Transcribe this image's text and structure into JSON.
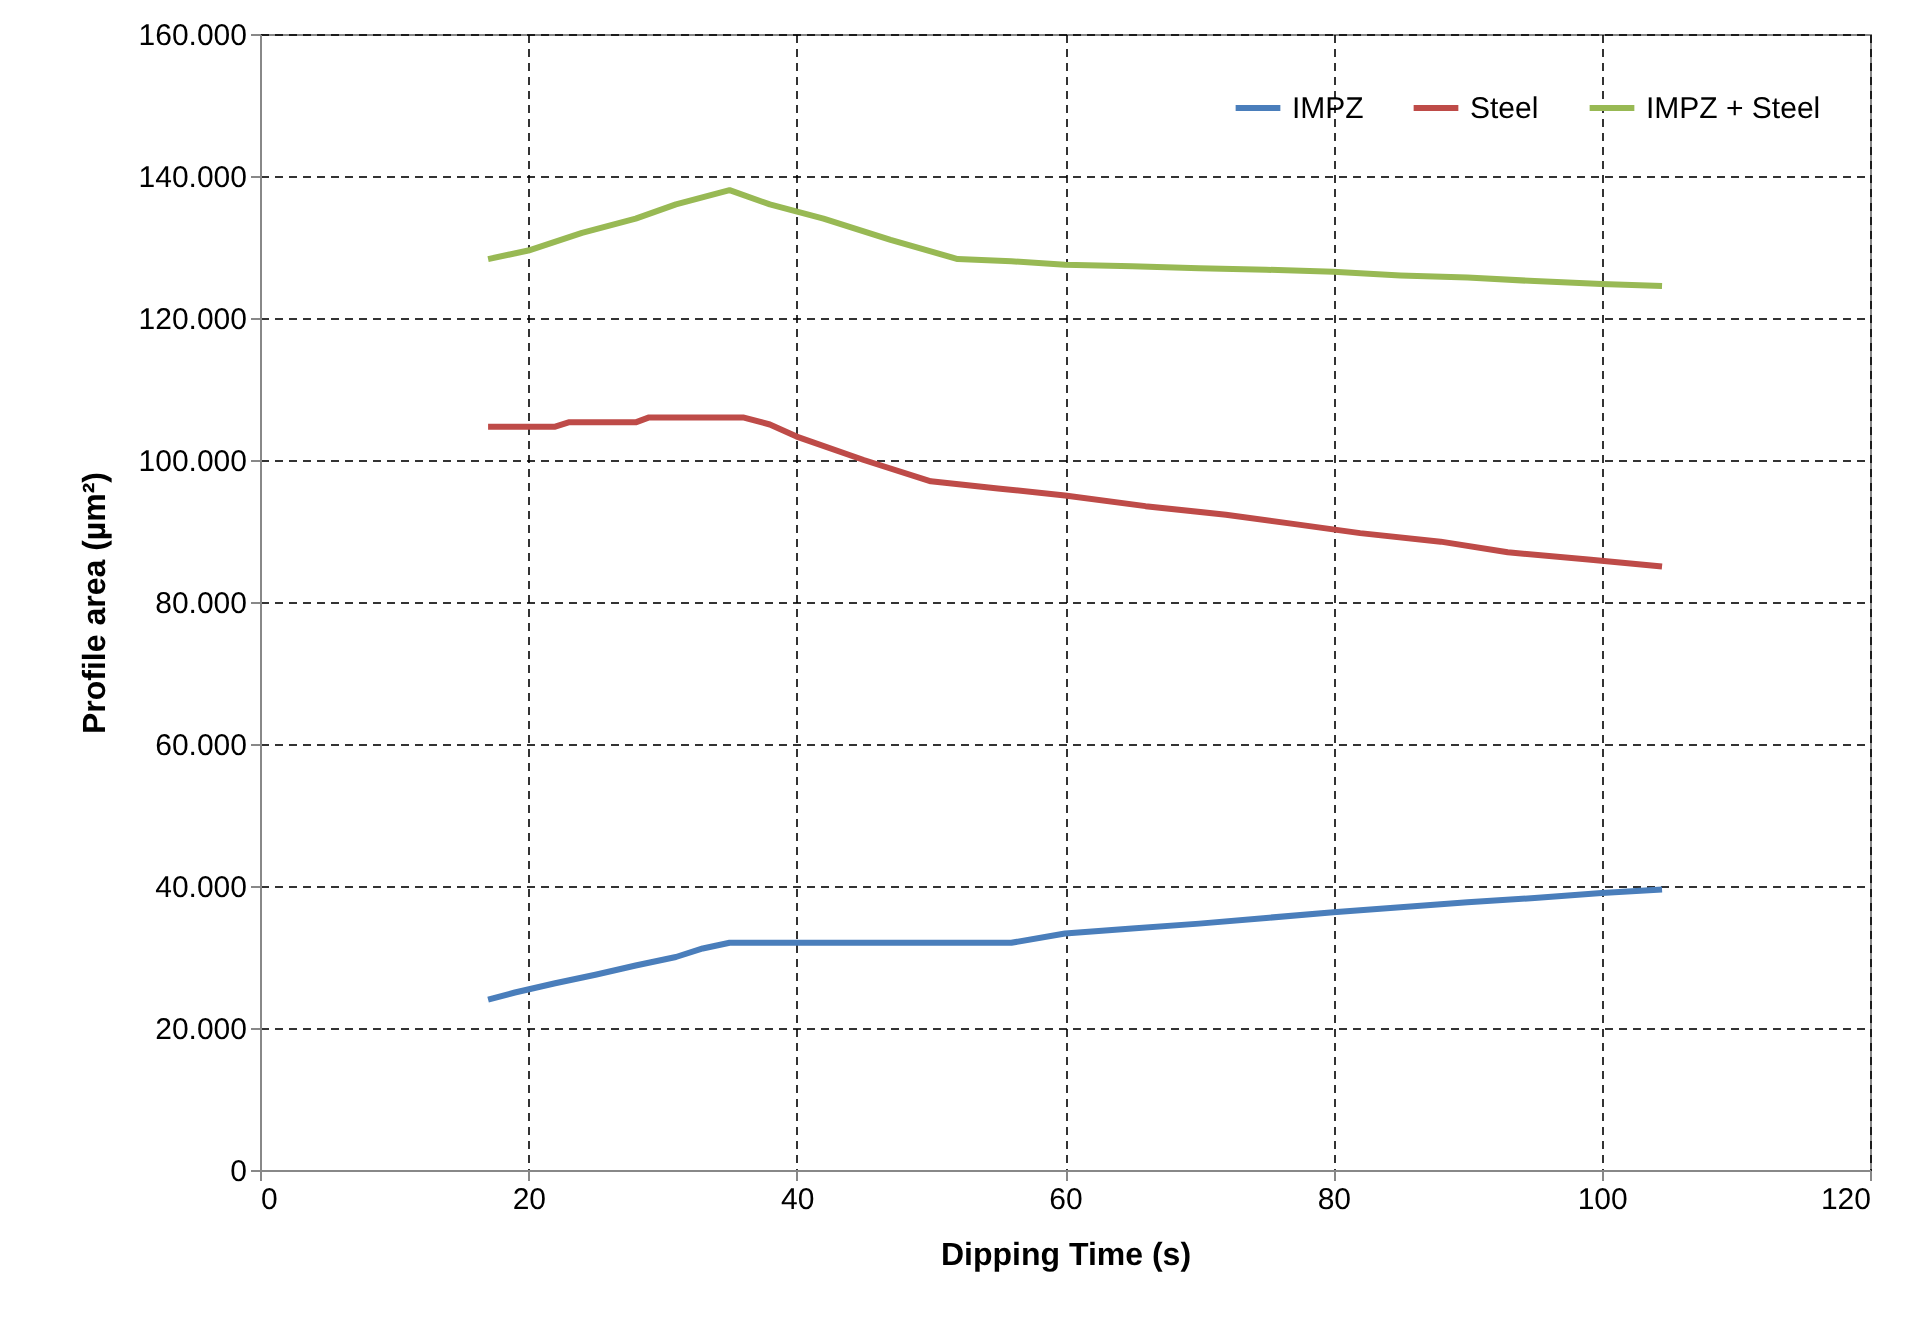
{
  "chart_data": {
    "type": "line",
    "xlabel": "Dipping Time (s)",
    "ylabel": "Profile area (µm²)",
    "xlim": [
      0,
      120
    ],
    "xticks": [
      0,
      20,
      40,
      60,
      80,
      100,
      120
    ],
    "ylim": [
      0,
      160000
    ],
    "yticks": [
      0,
      {
        "value": 20000,
        "label": "20.000"
      },
      {
        "value": 40000,
        "label": "40.000"
      },
      {
        "value": 60000,
        "label": "60.000"
      },
      {
        "value": 80000,
        "label": "80.000"
      },
      {
        "value": 100000,
        "label": "100.000"
      },
      {
        "value": 120000,
        "label": "120.000"
      },
      {
        "value": 140000,
        "label": "140.000"
      },
      {
        "value": 160000,
        "label": "160.000"
      }
    ],
    "grid": true,
    "legend": "top right",
    "line_style": "solid",
    "series": [
      {
        "name": "IMPZ",
        "color": "#4a7ebb",
        "x": [
          17,
          19,
          22,
          25,
          28,
          31,
          33,
          35,
          45,
          56,
          60,
          65,
          70,
          75,
          80,
          85,
          90,
          95,
          100,
          104.5
        ],
        "values": [
          24000,
          25000,
          26300,
          27500,
          28800,
          30000,
          31200,
          32000,
          32000,
          32000,
          33300,
          34000,
          34700,
          35500,
          36300,
          37000,
          37700,
          38300,
          39000,
          39500
        ]
      },
      {
        "name": "Steel",
        "color": "#be4b48",
        "x": [
          17,
          22,
          23,
          28,
          29,
          36,
          38,
          40,
          45,
          50,
          55,
          60,
          66,
          72,
          77,
          82,
          88,
          93,
          99,
          104.5
        ],
        "values": [
          104700,
          104700,
          105300,
          105300,
          106000,
          106000,
          105000,
          103300,
          100000,
          97000,
          96000,
          95000,
          93500,
          92300,
          91000,
          89700,
          88500,
          87000,
          86000,
          85000
        ]
      },
      {
        "name": "IMPZ + Steel",
        "color": "#98b954",
        "x": [
          17,
          20,
          24,
          28,
          31,
          35,
          38,
          42,
          47,
          52,
          56,
          60,
          65,
          70,
          75,
          80,
          85,
          90,
          95,
          100,
          104.5
        ],
        "values": [
          128300,
          129500,
          132000,
          134000,
          136000,
          138000,
          136000,
          134000,
          131000,
          128300,
          128000,
          127500,
          127300,
          127000,
          126800,
          126500,
          126000,
          125700,
          125200,
          124800,
          124500
        ]
      }
    ]
  }
}
